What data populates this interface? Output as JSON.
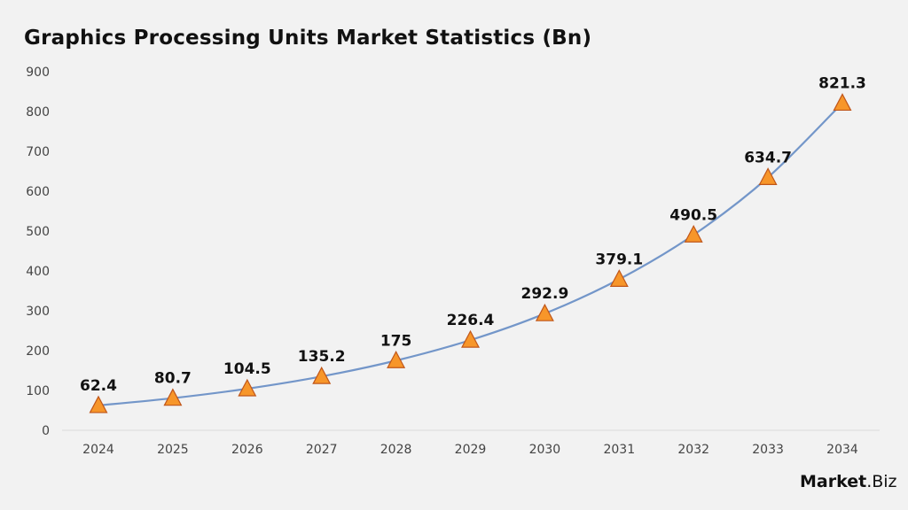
{
  "chart_data": {
    "type": "line",
    "title": "Graphics Processing Units Market Statistics (Bn)",
    "categories": [
      "2024",
      "2025",
      "2026",
      "2027",
      "2028",
      "2029",
      "2030",
      "2031",
      "2032",
      "2033",
      "2034"
    ],
    "values": [
      62.4,
      80.7,
      104.5,
      135.2,
      175,
      226.4,
      292.9,
      379.1,
      490.5,
      634.7,
      821.3
    ],
    "data_labels": [
      "62.4",
      "80.7",
      "104.5",
      "135.2",
      "175",
      "226.4",
      "292.9",
      "379.1",
      "490.5",
      "634.7",
      "821.3"
    ],
    "ylim": [
      0,
      900
    ],
    "yticks": [
      0,
      100,
      200,
      300,
      400,
      500,
      600,
      700,
      800,
      900
    ],
    "xlabel": "",
    "ylabel": "",
    "grid": false,
    "smooth": true,
    "marker": "triangle",
    "colors": {
      "line": "#7396c9",
      "marker_fill": "#f7962a",
      "marker_stroke": "#c0561a",
      "background": "#f2f2f2"
    }
  },
  "logo": {
    "text_bold": "Market",
    "text_regular": ".Biz"
  }
}
